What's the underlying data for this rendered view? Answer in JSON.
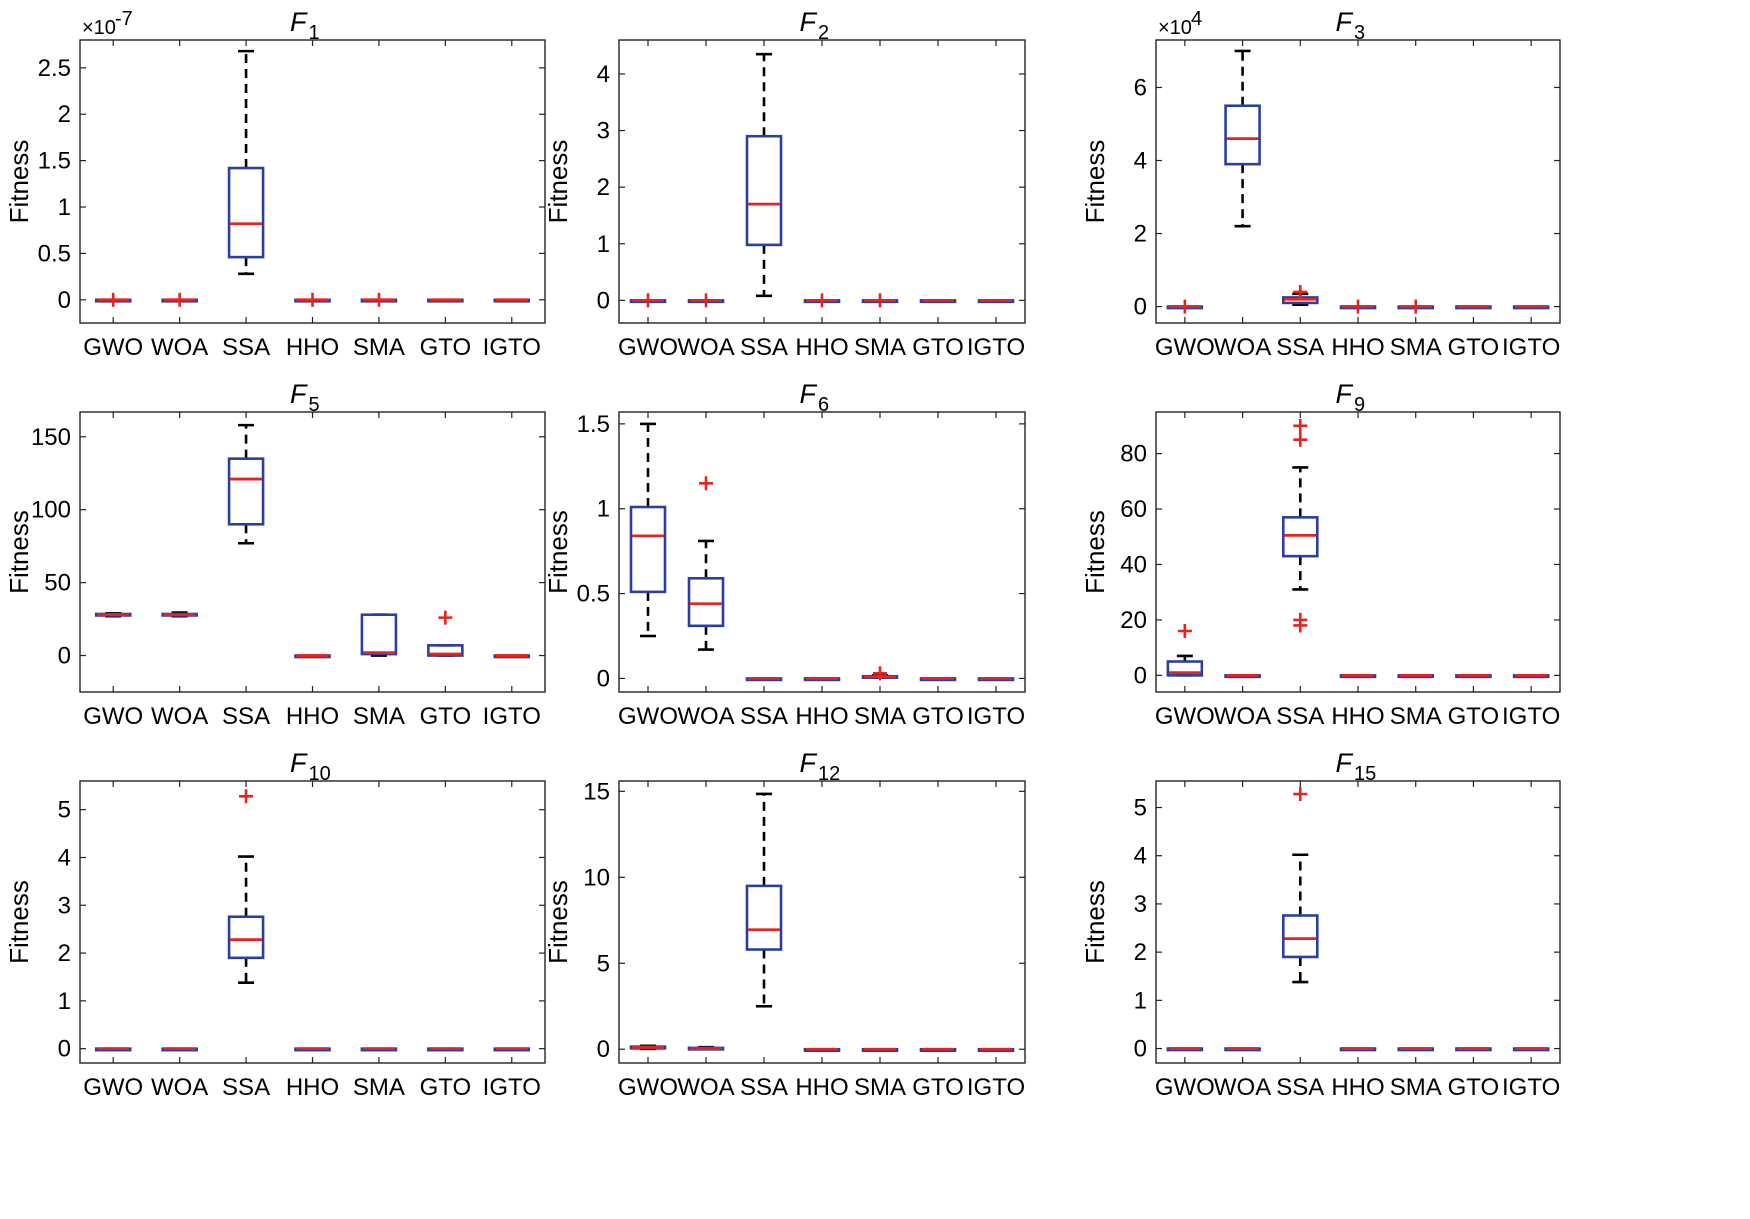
{
  "figure": {
    "categories": [
      "GWO",
      "WOA",
      "SSA",
      "HHO",
      "SMA",
      "GTO",
      "IGTO"
    ],
    "colors": {
      "box": "#2B3FA0",
      "median": "#E8221E",
      "whisker": "#000000",
      "outlier": "#E8221E"
    }
  },
  "chart_data": [
    {
      "type": "box",
      "title_main": "F",
      "title_sub": "1",
      "ylabel": "Fitness",
      "exponent_base": "×10",
      "exponent_power": "-7",
      "ylim": [
        -0.25,
        2.8
      ],
      "yticks": [
        0,
        0.5,
        1,
        1.5,
        2,
        2.5
      ],
      "ytick_labels": [
        "0",
        "0.5",
        "1",
        "1.5",
        "2",
        "2.5"
      ],
      "boxes": [
        {
          "min": 0,
          "q1": 0,
          "median": 0,
          "q3": 0,
          "max": 0,
          "outliers": []
        },
        {
          "min": 0,
          "q1": 0,
          "median": 0,
          "q3": 0,
          "max": 0,
          "outliers": []
        },
        {
          "min": 0.28,
          "q1": 0.46,
          "median": 0.82,
          "q3": 1.42,
          "max": 2.68,
          "outliers": []
        },
        {
          "min": 0,
          "q1": 0,
          "median": 0,
          "q3": 0,
          "max": 0,
          "outliers": []
        },
        {
          "min": 0,
          "q1": 0,
          "median": 0,
          "q3": 0,
          "max": 0,
          "outliers": []
        },
        {
          "min": 0,
          "q1": 0,
          "median": 0,
          "q3": 0,
          "max": 0,
          "outliers": []
        },
        {
          "min": 0,
          "q1": 0,
          "median": 0,
          "q3": 0,
          "max": 0,
          "outliers": []
        }
      ]
    },
    {
      "type": "box",
      "title_main": "F",
      "title_sub": "2",
      "ylabel": "Fitness",
      "exponent_base": "",
      "exponent_power": "",
      "ylim": [
        -0.4,
        4.6
      ],
      "yticks": [
        0,
        1,
        2,
        3,
        4
      ],
      "ytick_labels": [
        "0",
        "1",
        "2",
        "3",
        "4"
      ],
      "boxes": [
        {
          "min": 0,
          "q1": 0,
          "median": 0,
          "q3": 0,
          "max": 0,
          "outliers": []
        },
        {
          "min": 0,
          "q1": 0,
          "median": 0,
          "q3": 0,
          "max": 0,
          "outliers": []
        },
        {
          "min": 0.08,
          "q1": 0.98,
          "median": 1.7,
          "q3": 2.9,
          "max": 4.35,
          "outliers": []
        },
        {
          "min": 0,
          "q1": 0,
          "median": 0,
          "q3": 0,
          "max": 0,
          "outliers": []
        },
        {
          "min": 0,
          "q1": 0,
          "median": 0,
          "q3": 0,
          "max": 0,
          "outliers": []
        },
        {
          "min": 0,
          "q1": 0,
          "median": 0,
          "q3": 0,
          "max": 0,
          "outliers": []
        },
        {
          "min": 0,
          "q1": 0,
          "median": 0,
          "q3": 0,
          "max": 0,
          "outliers": []
        }
      ]
    },
    {
      "type": "box",
      "title_main": "F",
      "title_sub": "3",
      "ylabel": "Fitness",
      "exponent_base": "×10",
      "exponent_power": "4",
      "ylim": [
        -0.45,
        7.3
      ],
      "yticks": [
        0,
        2,
        4,
        6
      ],
      "ytick_labels": [
        "0",
        "2",
        "4",
        "6"
      ],
      "boxes": [
        {
          "min": 0,
          "q1": 0,
          "median": 0,
          "q3": 0,
          "max": 0,
          "outliers": []
        },
        {
          "min": 2.2,
          "q1": 3.9,
          "median": 4.6,
          "q3": 5.5,
          "max": 7.0,
          "outliers": []
        },
        {
          "min": 0.05,
          "q1": 0.1,
          "median": 0.2,
          "q3": 0.25,
          "max": 0.35,
          "outliers": [
            0.4
          ]
        },
        {
          "min": 0,
          "q1": 0,
          "median": 0,
          "q3": 0,
          "max": 0,
          "outliers": []
        },
        {
          "min": 0,
          "q1": 0,
          "median": 0,
          "q3": 0,
          "max": 0,
          "outliers": []
        },
        {
          "min": 0,
          "q1": 0,
          "median": 0,
          "q3": 0,
          "max": 0,
          "outliers": []
        },
        {
          "min": 0,
          "q1": 0,
          "median": 0,
          "q3": 0,
          "max": 0,
          "outliers": []
        }
      ]
    },
    {
      "type": "box",
      "title_main": "F",
      "title_sub": "5",
      "ylabel": "Fitness",
      "exponent_base": "",
      "exponent_power": "",
      "ylim": [
        -25,
        167
      ],
      "yticks": [
        0,
        50,
        100,
        150
      ],
      "ytick_labels": [
        "0",
        "50",
        "100",
        "150"
      ],
      "boxes": [
        {
          "min": 27,
          "q1": 27.5,
          "median": 28,
          "q3": 28.5,
          "max": 29,
          "outliers": []
        },
        {
          "min": 27,
          "q1": 27.5,
          "median": 28,
          "q3": 28.5,
          "max": 29.5,
          "outliers": []
        },
        {
          "min": 77,
          "q1": 90,
          "median": 121,
          "q3": 135,
          "max": 158,
          "outliers": []
        },
        {
          "min": 0,
          "q1": 0,
          "median": 0,
          "q3": 0,
          "max": 0,
          "outliers": []
        },
        {
          "min": 0,
          "q1": 1,
          "median": 2,
          "q3": 28,
          "max": 28,
          "outliers": []
        },
        {
          "min": 0,
          "q1": 0,
          "median": 1,
          "q3": 7,
          "max": 7,
          "outliers": [
            26
          ]
        },
        {
          "min": 0,
          "q1": 0,
          "median": 0,
          "q3": 0,
          "max": 0,
          "outliers": []
        }
      ]
    },
    {
      "type": "box",
      "title_main": "F",
      "title_sub": "6",
      "ylabel": "Fitness",
      "exponent_base": "",
      "exponent_power": "",
      "ylim": [
        -0.08,
        1.57
      ],
      "yticks": [
        0,
        0.5,
        1,
        1.5
      ],
      "ytick_labels": [
        "0",
        "0.5",
        "1",
        "1.5"
      ],
      "boxes": [
        {
          "min": 0.25,
          "q1": 0.51,
          "median": 0.84,
          "q3": 1.01,
          "max": 1.5,
          "outliers": []
        },
        {
          "min": 0.17,
          "q1": 0.31,
          "median": 0.44,
          "q3": 0.59,
          "max": 0.81,
          "outliers": [
            1.15
          ]
        },
        {
          "min": 0,
          "q1": 0,
          "median": 0,
          "q3": 0,
          "max": 0,
          "outliers": []
        },
        {
          "min": 0,
          "q1": 0,
          "median": 0,
          "q3": 0,
          "max": 0,
          "outliers": []
        },
        {
          "min": 0.005,
          "q1": 0.008,
          "median": 0.01,
          "q3": 0.013,
          "max": 0.018,
          "outliers": [
            0.03
          ]
        },
        {
          "min": 0,
          "q1": 0,
          "median": 0,
          "q3": 0,
          "max": 0,
          "outliers": []
        },
        {
          "min": 0,
          "q1": 0,
          "median": 0,
          "q3": 0,
          "max": 0,
          "outliers": []
        }
      ]
    },
    {
      "type": "box",
      "title_main": "F",
      "title_sub": "9",
      "ylabel": "Fitness",
      "exponent_base": "",
      "exponent_power": "",
      "ylim": [
        -6,
        95
      ],
      "yticks": [
        0,
        20,
        40,
        60,
        80
      ],
      "ytick_labels": [
        "0",
        "20",
        "40",
        "60",
        "80"
      ],
      "boxes": [
        {
          "min": 0,
          "q1": 0,
          "median": 1,
          "q3": 5,
          "max": 7,
          "outliers": [
            16
          ]
        },
        {
          "min": 0,
          "q1": 0,
          "median": 0,
          "q3": 0,
          "max": 0,
          "outliers": []
        },
        {
          "min": 31,
          "q1": 43,
          "median": 50.5,
          "q3": 57,
          "max": 75,
          "outliers": [
            90,
            85,
            20,
            18
          ]
        },
        {
          "min": 0,
          "q1": 0,
          "median": 0,
          "q3": 0,
          "max": 0,
          "outliers": []
        },
        {
          "min": 0,
          "q1": 0,
          "median": 0,
          "q3": 0,
          "max": 0,
          "outliers": []
        },
        {
          "min": 0,
          "q1": 0,
          "median": 0,
          "q3": 0,
          "max": 0,
          "outliers": []
        },
        {
          "min": 0,
          "q1": 0,
          "median": 0,
          "q3": 0,
          "max": 0,
          "outliers": []
        }
      ]
    },
    {
      "type": "box",
      "title_main": "F",
      "title_sub": "10",
      "ylabel": "Fitness",
      "exponent_base": "",
      "exponent_power": "",
      "ylim": [
        -0.3,
        5.6
      ],
      "yticks": [
        0,
        1,
        2,
        3,
        4,
        5
      ],
      "ytick_labels": [
        "0",
        "1",
        "2",
        "3",
        "4",
        "5"
      ],
      "boxes": [
        {
          "min": 0,
          "q1": 0,
          "median": 0,
          "q3": 0,
          "max": 0,
          "outliers": []
        },
        {
          "min": 0,
          "q1": 0,
          "median": 0,
          "q3": 0,
          "max": 0,
          "outliers": []
        },
        {
          "min": 1.38,
          "q1": 1.9,
          "median": 2.28,
          "q3": 2.76,
          "max": 4.02,
          "outliers": [
            5.28
          ]
        },
        {
          "min": 0,
          "q1": 0,
          "median": 0,
          "q3": 0,
          "max": 0,
          "outliers": []
        },
        {
          "min": 0,
          "q1": 0,
          "median": 0,
          "q3": 0,
          "max": 0,
          "outliers": []
        },
        {
          "min": 0,
          "q1": 0,
          "median": 0,
          "q3": 0,
          "max": 0,
          "outliers": []
        },
        {
          "min": 0,
          "q1": 0,
          "median": 0,
          "q3": 0,
          "max": 0,
          "outliers": []
        }
      ]
    },
    {
      "type": "box",
      "title_main": "F",
      "title_sub": "12",
      "ylabel": "Fitness",
      "exponent_base": "",
      "exponent_power": "",
      "ylim": [
        -0.8,
        15.6
      ],
      "yticks": [
        0,
        5,
        10,
        15
      ],
      "ytick_labels": [
        "0",
        "5",
        "10",
        "15"
      ],
      "boxes": [
        {
          "min": 0.02,
          "q1": 0.05,
          "median": 0.1,
          "q3": 0.15,
          "max": 0.2,
          "outliers": []
        },
        {
          "min": 0.01,
          "q1": 0.03,
          "median": 0.05,
          "q3": 0.08,
          "max": 0.12,
          "outliers": []
        },
        {
          "min": 2.5,
          "q1": 5.8,
          "median": 6.95,
          "q3": 9.5,
          "max": 14.85,
          "outliers": []
        },
        {
          "min": 0,
          "q1": 0,
          "median": 0,
          "q3": 0,
          "max": 0,
          "outliers": []
        },
        {
          "min": 0,
          "q1": 0,
          "median": 0,
          "q3": 0,
          "max": 0,
          "outliers": []
        },
        {
          "min": 0,
          "q1": 0,
          "median": 0,
          "q3": 0,
          "max": 0,
          "outliers": []
        },
        {
          "min": 0,
          "q1": 0,
          "median": 0,
          "q3": 0,
          "max": 0,
          "outliers": []
        }
      ]
    },
    {
      "type": "box",
      "title_main": "F",
      "title_sub": "15",
      "ylabel": "Fitness",
      "exponent_base": "",
      "exponent_power": "",
      "ylim": [
        -0.3,
        5.55
      ],
      "yticks": [
        0,
        1,
        2,
        3,
        4,
        5
      ],
      "ytick_labels": [
        "0",
        "1",
        "2",
        "3",
        "4",
        "5"
      ],
      "boxes": [
        {
          "min": 0,
          "q1": 0,
          "median": 0,
          "q3": 0,
          "max": 0,
          "outliers": []
        },
        {
          "min": 0,
          "q1": 0,
          "median": 0,
          "q3": 0,
          "max": 0,
          "outliers": []
        },
        {
          "min": 1.38,
          "q1": 1.9,
          "median": 2.28,
          "q3": 2.76,
          "max": 4.02,
          "outliers": [
            5.28
          ]
        },
        {
          "min": 0,
          "q1": 0,
          "median": 0,
          "q3": 0,
          "max": 0,
          "outliers": []
        },
        {
          "min": 0,
          "q1": 0,
          "median": 0,
          "q3": 0,
          "max": 0,
          "outliers": []
        },
        {
          "min": 0,
          "q1": 0,
          "median": 0,
          "q3": 0,
          "max": 0,
          "outliers": []
        },
        {
          "min": 0,
          "q1": 0,
          "median": 0,
          "q3": 0,
          "max": 0,
          "outliers": []
        }
      ]
    }
  ]
}
